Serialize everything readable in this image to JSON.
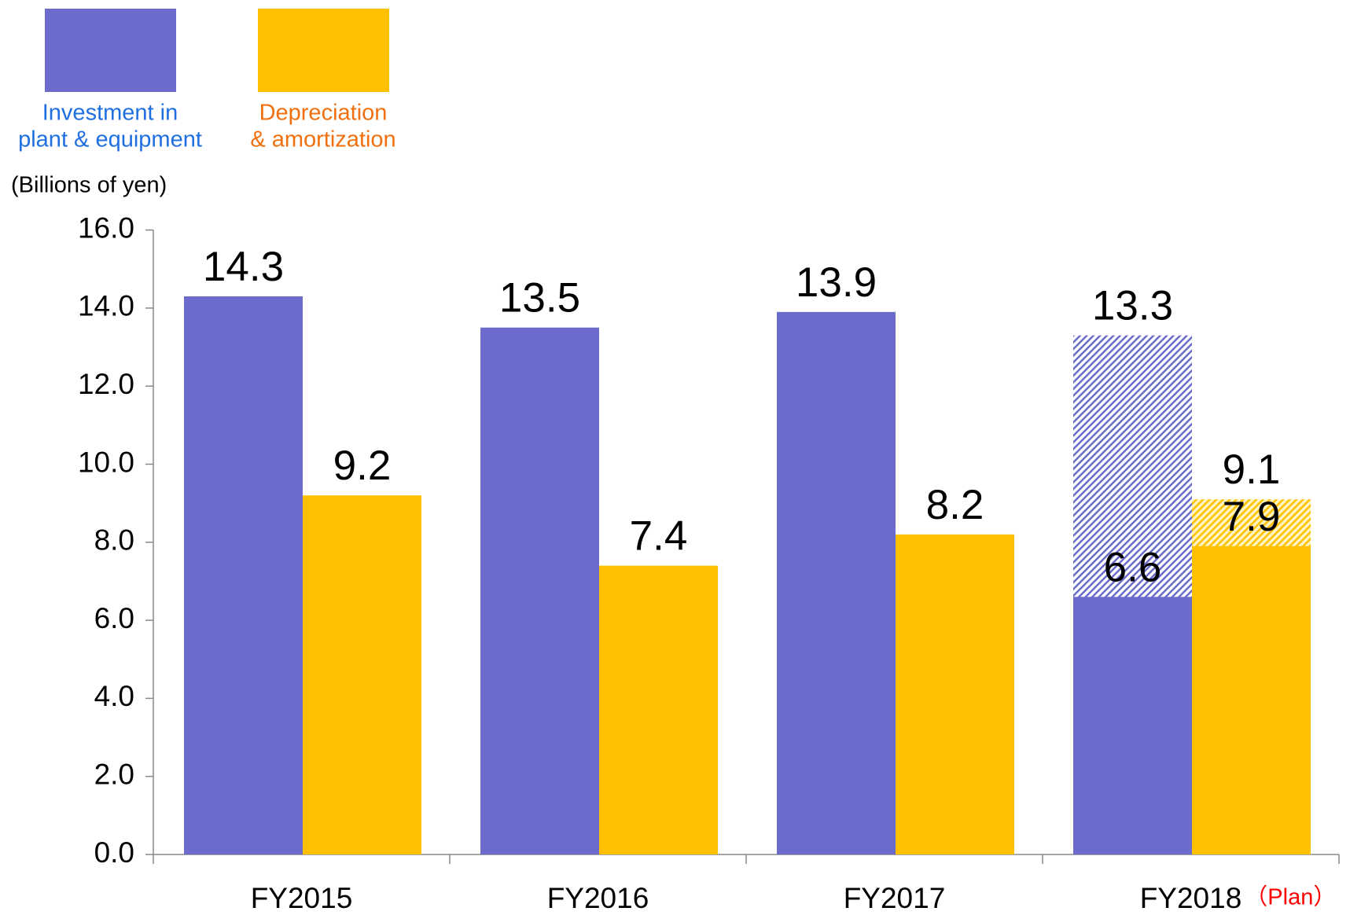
{
  "chart_data": {
    "type": "bar",
    "unit_label": "(Billions of yen)",
    "categories": [
      "FY2015",
      "FY2016",
      "FY2017",
      "FY2018"
    ],
    "plan_label": "（Plan）",
    "series": [
      {
        "name": [
          "Investment in",
          "plant & equipment"
        ],
        "color": "#6b6bcc",
        "legend_text_color": "#1f6fe0",
        "values": [
          14.3,
          13.5,
          13.9,
          6.6
        ],
        "plan_values": [
          null,
          null,
          null,
          13.3
        ]
      },
      {
        "name": [
          "Depreciation",
          "& amortization"
        ],
        "color": "#ffc000",
        "legend_text_color": "#f07010",
        "values": [
          9.2,
          7.4,
          8.2,
          7.9
        ],
        "plan_values": [
          null,
          null,
          null,
          9.1
        ]
      }
    ],
    "ylim": [
      0,
      16
    ],
    "yticks": [
      {
        "value": 0,
        "label": "0.0"
      },
      {
        "value": 2,
        "label": "2.0"
      },
      {
        "value": 4,
        "label": "4.0"
      },
      {
        "value": 6,
        "label": "6.0"
      },
      {
        "value": 8,
        "label": "8.0"
      },
      {
        "value": 10,
        "label": "10.0"
      },
      {
        "value": 12,
        "label": "12.0"
      },
      {
        "value": 14,
        "label": "14.0"
      },
      {
        "value": 16,
        "label": "16.0"
      }
    ],
    "grid": false
  }
}
